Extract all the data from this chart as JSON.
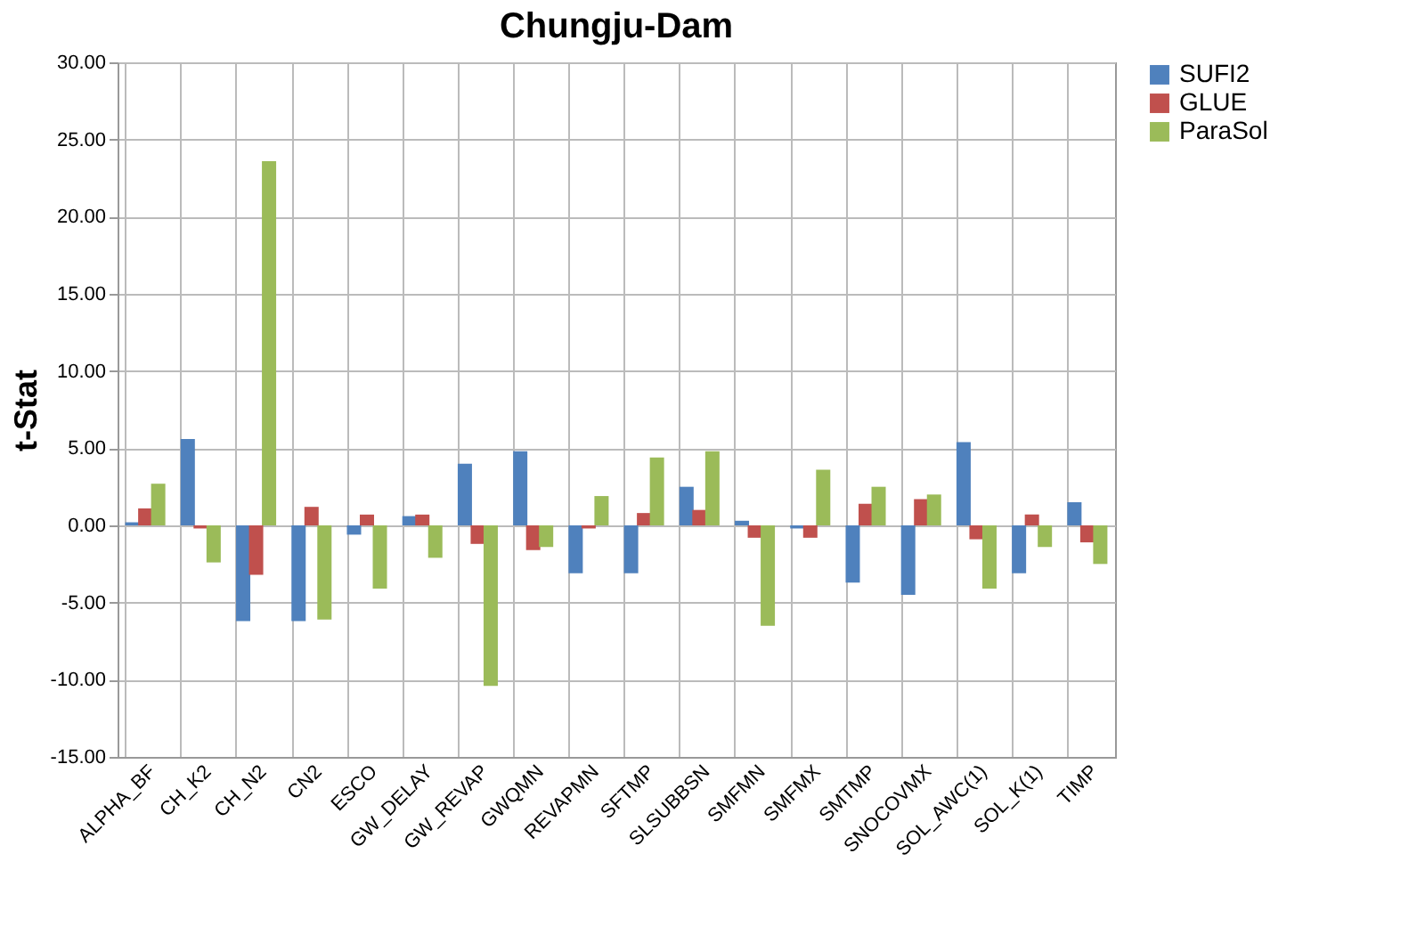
{
  "chart_data": {
    "type": "bar",
    "title": "Chungju-Dam",
    "ylabel": "t-Stat",
    "categories": [
      "ALPHA_BF",
      "CH_K2",
      "CH_N2",
      "CN2",
      "ESCO",
      "GW_DELAY",
      "GW_REVAP",
      "GWQMN",
      "REVAPMN",
      "SFTMP",
      "SLSUBBSN",
      "SMFMN",
      "SMFMX",
      "SMTMP",
      "SNOCOVMX",
      "SOL_AWC(1)",
      "SOL_K(1)",
      "TIMP"
    ],
    "series": [
      {
        "name": "SUFI2",
        "color": "#4f81bd",
        "values": [
          0.2,
          5.6,
          -6.2,
          -6.2,
          -0.6,
          0.6,
          4.0,
          4.8,
          -3.1,
          -3.1,
          2.5,
          0.3,
          -0.2,
          -3.7,
          -4.5,
          5.4,
          -3.1,
          1.5
        ]
      },
      {
        "name": "GLUE",
        "color": "#c0504d",
        "values": [
          1.1,
          -0.2,
          -3.2,
          1.2,
          0.7,
          0.7,
          -1.2,
          -1.6,
          -0.2,
          0.8,
          1.0,
          -0.8,
          -0.8,
          1.4,
          1.7,
          -0.9,
          0.7,
          -1.1
        ]
      },
      {
        "name": "ParaSol",
        "color": "#9bbb59",
        "values": [
          2.7,
          -2.4,
          23.6,
          -6.1,
          -4.1,
          -2.1,
          -10.4,
          -1.4,
          1.9,
          4.4,
          4.8,
          -6.5,
          3.6,
          2.5,
          2.0,
          -4.1,
          -1.4,
          -2.5
        ]
      }
    ],
    "ylim": [
      -15,
      30
    ],
    "yticks": [
      {
        "value": -15,
        "label": "-15.00"
      },
      {
        "value": -10,
        "label": "-10.00"
      },
      {
        "value": -5,
        "label": "-5.00"
      },
      {
        "value": 0,
        "label": "0.00"
      },
      {
        "value": 5,
        "label": "5.00"
      },
      {
        "value": 10,
        "label": "10.00"
      },
      {
        "value": 15,
        "label": "15.00"
      },
      {
        "value": 20,
        "label": "20.00"
      },
      {
        "value": 25,
        "label": "25.00"
      },
      {
        "value": 30,
        "label": "30.00"
      }
    ],
    "grid": true,
    "legend": "right"
  }
}
